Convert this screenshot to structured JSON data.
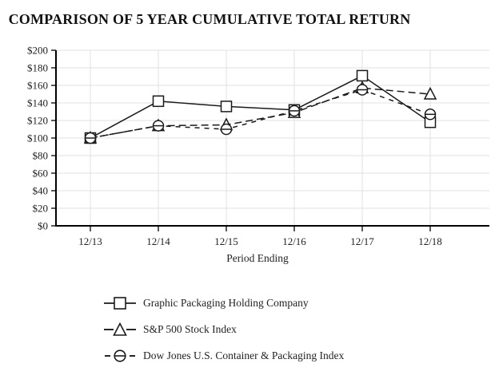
{
  "title": "COMPARISON OF 5 YEAR CUMULATIVE TOTAL RETURN",
  "chart_data": {
    "type": "line",
    "title": "COMPARISON OF 5 YEAR CUMULATIVE TOTAL RETURN",
    "xlabel": "Period Ending",
    "ylabel": "",
    "categories": [
      "12/13",
      "12/14",
      "12/15",
      "12/16",
      "12/17",
      "12/18"
    ],
    "y_ticks": [
      "$0",
      "$20",
      "$40",
      "$60",
      "$80",
      "$100",
      "$120",
      "$140",
      "$160",
      "$180",
      "$200"
    ],
    "ylim": [
      0,
      200
    ],
    "grid": true,
    "legend_position": "bottom-left",
    "series": [
      {
        "name": "Graphic Packaging Holding Company",
        "marker": "square",
        "line_style": "solid",
        "values": [
          100,
          142,
          136,
          132,
          171,
          118
        ]
      },
      {
        "name": "S&P 500 Stock Index",
        "marker": "triangle",
        "line_style": "dashed",
        "values": [
          100,
          114,
          115,
          129,
          157,
          150
        ]
      },
      {
        "name": "Dow Jones U.S. Container & Packaging Index",
        "marker": "circle",
        "line_style": "dashed",
        "values": [
          100,
          114,
          110,
          131,
          155,
          127
        ]
      }
    ],
    "colors": {
      "line": "#1a1a1a",
      "grid": "#e0e0e0",
      "axis": "#000000",
      "background": "#ffffff"
    }
  }
}
